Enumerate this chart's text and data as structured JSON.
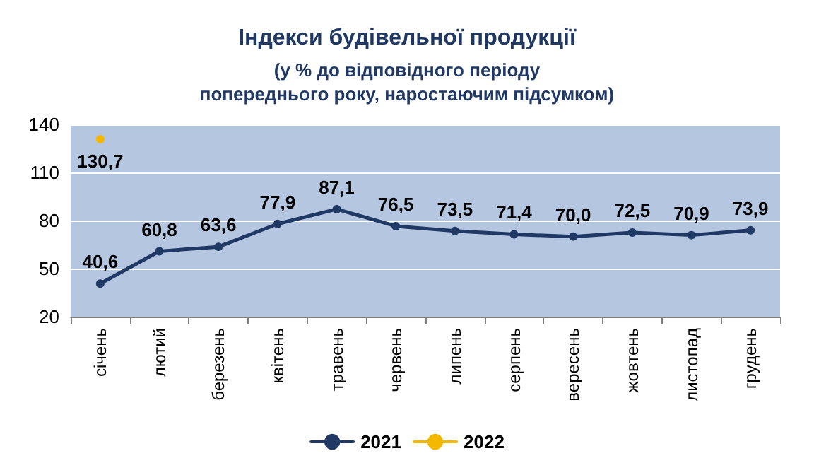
{
  "chart_data": {
    "type": "line",
    "title": "Індекси будівельної продукції",
    "subtitle": "(у % до відповідного періоду\nпопереднього року, наростаючим підсумком)",
    "categories": [
      "січень",
      "лютий",
      "березень",
      "квітень",
      "травень",
      "червень",
      "липень",
      "серпень",
      "вересень",
      "жовтень",
      "листопад",
      "грудень"
    ],
    "series": [
      {
        "name": "2021",
        "color": "#1f3864",
        "values": [
          40.6,
          60.8,
          63.6,
          77.9,
          87.1,
          76.5,
          73.5,
          71.4,
          70.0,
          72.5,
          70.9,
          73.9
        ],
        "value_labels": [
          "40,6",
          "60,8",
          "63,6",
          "77,9",
          "87,1",
          "76,5",
          "73,5",
          "71,4",
          "70,0",
          "72,5",
          "70,9",
          "73,9"
        ]
      },
      {
        "name": "2022",
        "color": "#f5b800",
        "values": [
          130.7,
          null,
          null,
          null,
          null,
          null,
          null,
          null,
          null,
          null,
          null,
          null
        ],
        "value_labels": [
          "130,7",
          null,
          null,
          null,
          null,
          null,
          null,
          null,
          null,
          null,
          null,
          null
        ]
      }
    ],
    "ylim": [
      20,
      140
    ],
    "yticks": [
      20,
      50,
      80,
      110,
      140
    ],
    "grid": "y",
    "legend": "bottom",
    "marker": "circle",
    "line_style": "solid"
  }
}
